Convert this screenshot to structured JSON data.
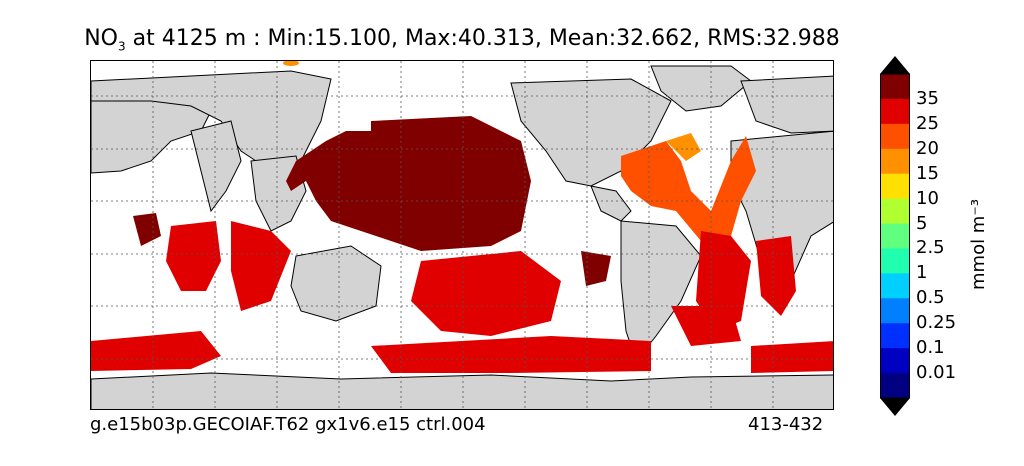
{
  "title": {
    "prefix": "NO",
    "subscript": "3",
    "rest": " at 4125 m : Min:15.100, Max:40.313, Mean:32.662, RMS:32.988"
  },
  "footer": {
    "case_name": "g.e15b03p.GECOIAF.T62 gx1v6.e15 ctrl.004",
    "years": "413-432"
  },
  "colorbar": {
    "units": "mmol m⁻³",
    "levels": [
      "35",
      "25",
      "20",
      "15",
      "10",
      "5",
      "2.5",
      "1",
      "0.5",
      "0.25",
      "0.1",
      "0.01"
    ],
    "colors": [
      "#800000",
      "#e00000",
      "#ff5000",
      "#ff9000",
      "#ffe000",
      "#b0ff30",
      "#60ff80",
      "#20ffb0",
      "#00d0ff",
      "#0080ff",
      "#0030ff",
      "#0000c0",
      "#000080"
    ],
    "extend_top_color": "#000000",
    "extend_bottom_color": "#000000"
  },
  "map": {
    "land_color": "#d3d3d3",
    "ocean_missing_color": "#ffffff",
    "grid": true
  }
}
